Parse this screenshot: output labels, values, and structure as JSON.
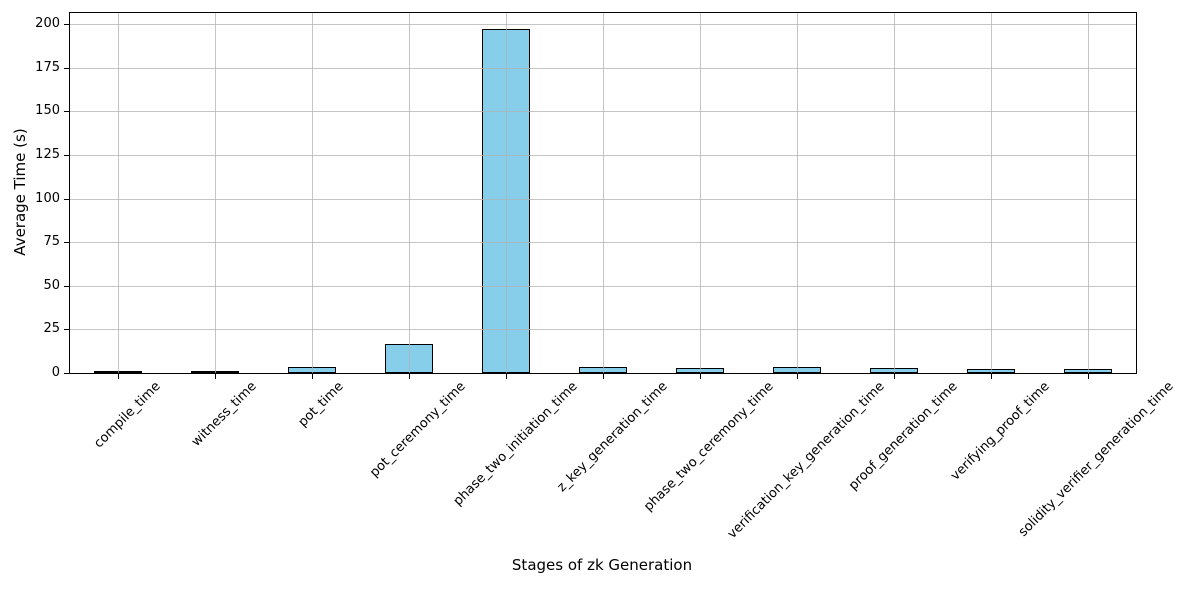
{
  "figure": {
    "background_color": "#ffffff",
    "text_color": "#000000"
  },
  "chart_data": {
    "type": "bar",
    "title": "",
    "xlabel": "Stages of zk Generation",
    "ylabel": "Average Time (s)",
    "categories": [
      "compile_time",
      "witness_time",
      "pot_time",
      "pot_ceremony_time",
      "phase_two_initiation_time",
      "z_key_generation_time",
      "phase_two_ceremony_time",
      "verification_key_generation_time",
      "proof_generation_time",
      "verifying_proof_time",
      "solidity_verifier_generation_time"
    ],
    "values": [
      0.7,
      0.7,
      3.4,
      16.8,
      197.5,
      3.5,
      2.6,
      3.2,
      3.1,
      2.5,
      2.5
    ],
    "yticks": [
      0,
      25,
      50,
      75,
      100,
      125,
      150,
      175,
      200
    ],
    "ylim": [
      0,
      206.5
    ],
    "grid": true,
    "legend": "none",
    "tick_label_rotation_deg": 45,
    "bar_color": "#87CEEB",
    "bar_edge_color": "#000000",
    "grid_color": "rgba(178,178,178,0.75)"
  }
}
